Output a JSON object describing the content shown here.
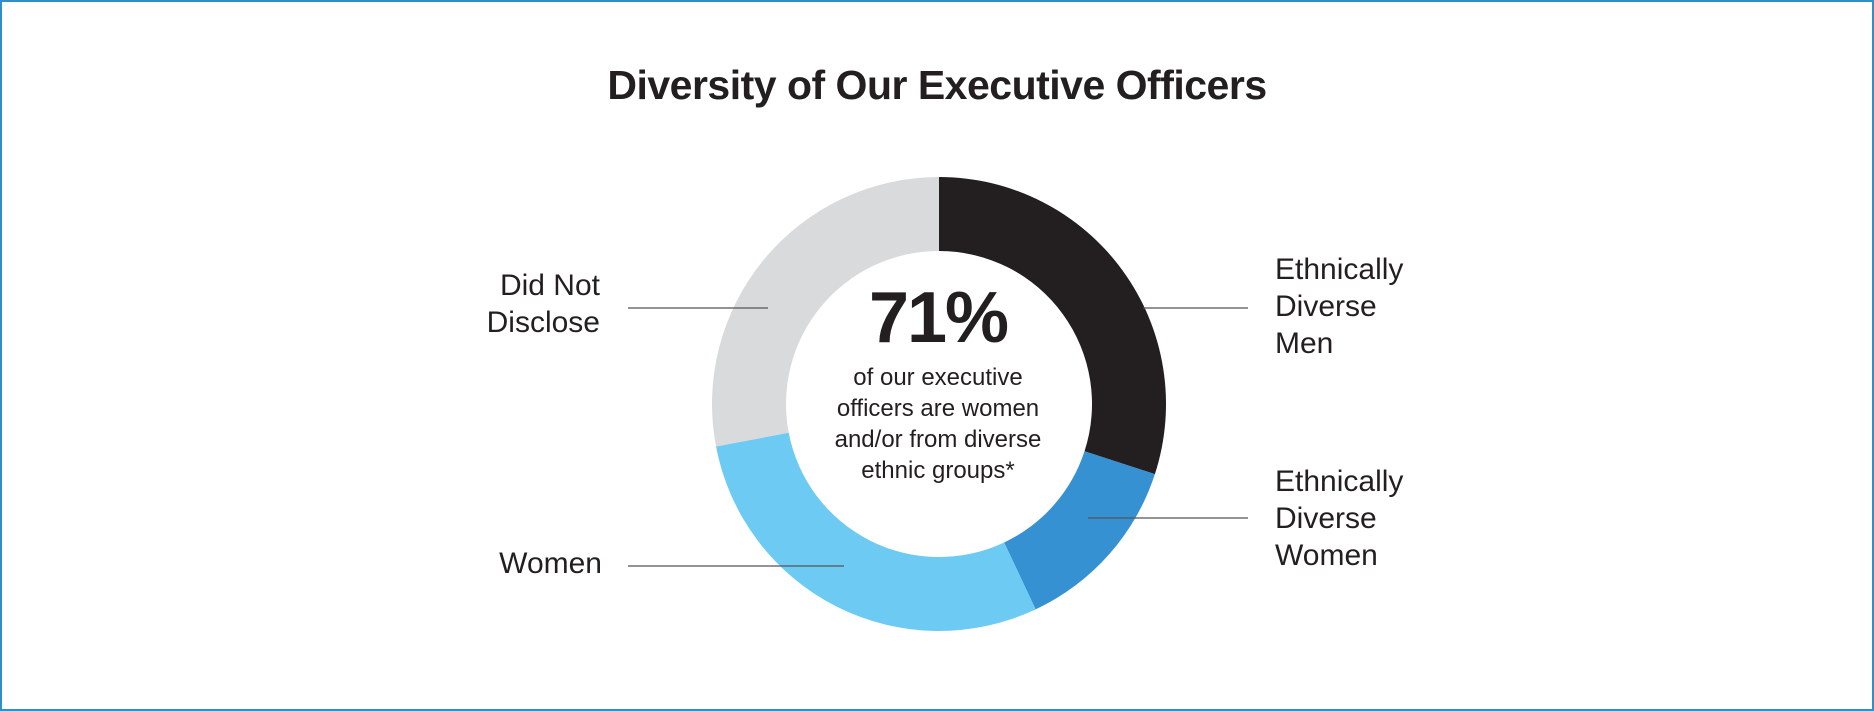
{
  "chart_data": {
    "type": "pie",
    "variant": "donut",
    "title": "Diversity of Our Executive Officers",
    "center_value": "71%",
    "center_text": "of our executive officers are women and/or from diverse ethnic groups*",
    "categories": [
      "Ethnically Diverse Men",
      "Ethnically Diverse Women",
      "Women",
      "Did Not Disclose"
    ],
    "values": [
      30,
      13,
      29,
      28
    ],
    "colors": [
      "#231f20",
      "#3591d1",
      "#6dcbf3",
      "#d9dadb"
    ],
    "label_lines": [
      [
        "Ethnically",
        "Diverse",
        "Men"
      ],
      [
        "Ethnically",
        "Diverse",
        "Women"
      ],
      [
        "Women"
      ],
      [
        "Did Not",
        "Disclose"
      ]
    ]
  }
}
